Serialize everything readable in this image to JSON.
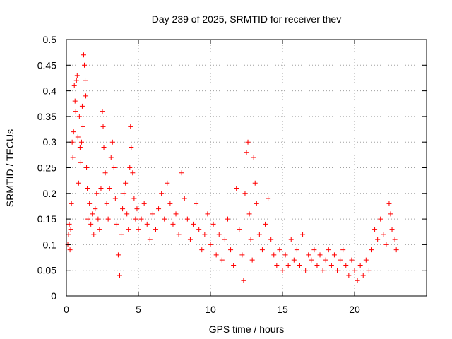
{
  "chart_data": {
    "type": "scatter",
    "title": "Day 239 of 2025, SRMTID for receiver thev",
    "xlabel": "GPS time / hours",
    "ylabel": "SRMTID / TECUs",
    "xlim": [
      0,
      25
    ],
    "ylim": [
      0,
      0.5
    ],
    "grid": true,
    "marker": "+",
    "x_ticks": [
      0,
      5,
      10,
      15,
      20
    ],
    "x_tick_labels": [
      "0",
      "5",
      "10",
      "15",
      "20"
    ],
    "y_ticks": [
      0,
      0.05,
      0.1,
      0.15,
      0.2,
      0.25,
      0.3,
      0.35,
      0.4,
      0.45,
      0.5
    ],
    "y_tick_labels": [
      "0",
      "0.05",
      "0.1",
      "0.15",
      "0.2",
      "0.25",
      "0.3",
      "0.35",
      "0.4",
      "0.45",
      "0.5"
    ],
    "colors": {
      "points": "#ff0000",
      "grid": "#a0a0a0",
      "axes": "#000000"
    },
    "series": [
      {
        "name": "SRMTID",
        "points": [
          [
            0.1,
            0.1
          ],
          [
            0.15,
            0.12
          ],
          [
            0.2,
            0.14
          ],
          [
            0.25,
            0.09
          ],
          [
            0.3,
            0.13
          ],
          [
            0.35,
            0.18
          ],
          [
            0.4,
            0.3
          ],
          [
            0.45,
            0.27
          ],
          [
            0.5,
            0.32
          ],
          [
            0.55,
            0.41
          ],
          [
            0.6,
            0.38
          ],
          [
            0.65,
            0.36
          ],
          [
            0.7,
            0.42
          ],
          [
            0.75,
            0.43
          ],
          [
            0.8,
            0.31
          ],
          [
            0.85,
            0.22
          ],
          [
            0.9,
            0.35
          ],
          [
            0.95,
            0.29
          ],
          [
            1.0,
            0.26
          ],
          [
            1.05,
            0.3
          ],
          [
            1.1,
            0.37
          ],
          [
            1.15,
            0.33
          ],
          [
            1.2,
            0.47
          ],
          [
            1.25,
            0.45
          ],
          [
            1.3,
            0.42
          ],
          [
            1.35,
            0.39
          ],
          [
            1.4,
            0.25
          ],
          [
            1.45,
            0.21
          ],
          [
            1.5,
            0.15
          ],
          [
            1.6,
            0.18
          ],
          [
            1.7,
            0.14
          ],
          [
            1.8,
            0.16
          ],
          [
            1.9,
            0.12
          ],
          [
            2.0,
            0.17
          ],
          [
            2.1,
            0.2
          ],
          [
            2.2,
            0.15
          ],
          [
            2.3,
            0.13
          ],
          [
            2.4,
            0.21
          ],
          [
            2.5,
            0.36
          ],
          [
            2.55,
            0.33
          ],
          [
            2.6,
            0.29
          ],
          [
            2.7,
            0.24
          ],
          [
            2.8,
            0.18
          ],
          [
            2.9,
            0.15
          ],
          [
            3.0,
            0.21
          ],
          [
            3.1,
            0.27
          ],
          [
            3.2,
            0.3
          ],
          [
            3.3,
            0.25
          ],
          [
            3.4,
            0.19
          ],
          [
            3.5,
            0.14
          ],
          [
            3.6,
            0.08
          ],
          [
            3.7,
            0.04
          ],
          [
            3.8,
            0.12
          ],
          [
            3.9,
            0.17
          ],
          [
            4.0,
            0.2
          ],
          [
            4.1,
            0.22
          ],
          [
            4.2,
            0.16
          ],
          [
            4.3,
            0.13
          ],
          [
            4.4,
            0.25
          ],
          [
            4.45,
            0.33
          ],
          [
            4.5,
            0.29
          ],
          [
            4.6,
            0.24
          ],
          [
            4.7,
            0.19
          ],
          [
            4.8,
            0.15
          ],
          [
            4.9,
            0.17
          ],
          [
            5.0,
            0.13
          ],
          [
            5.2,
            0.15
          ],
          [
            5.4,
            0.18
          ],
          [
            5.6,
            0.14
          ],
          [
            5.8,
            0.11
          ],
          [
            6.0,
            0.16
          ],
          [
            6.2,
            0.13
          ],
          [
            6.4,
            0.17
          ],
          [
            6.6,
            0.2
          ],
          [
            6.8,
            0.15
          ],
          [
            7.0,
            0.22
          ],
          [
            7.2,
            0.18
          ],
          [
            7.4,
            0.14
          ],
          [
            7.6,
            0.16
          ],
          [
            7.8,
            0.12
          ],
          [
            8.0,
            0.24
          ],
          [
            8.2,
            0.19
          ],
          [
            8.4,
            0.15
          ],
          [
            8.6,
            0.11
          ],
          [
            8.8,
            0.14
          ],
          [
            9.0,
            0.18
          ],
          [
            9.2,
            0.13
          ],
          [
            9.4,
            0.09
          ],
          [
            9.6,
            0.12
          ],
          [
            9.8,
            0.16
          ],
          [
            10.0,
            0.1
          ],
          [
            10.2,
            0.14
          ],
          [
            10.4,
            0.08
          ],
          [
            10.6,
            0.12
          ],
          [
            10.8,
            0.07
          ],
          [
            11.0,
            0.11
          ],
          [
            11.2,
            0.15
          ],
          [
            11.4,
            0.09
          ],
          [
            11.6,
            0.06
          ],
          [
            11.8,
            0.21
          ],
          [
            12.0,
            0.13
          ],
          [
            12.2,
            0.08
          ],
          [
            12.3,
            0.03
          ],
          [
            12.4,
            0.2
          ],
          [
            12.5,
            0.28
          ],
          [
            12.6,
            0.3
          ],
          [
            12.7,
            0.16
          ],
          [
            12.8,
            0.11
          ],
          [
            12.9,
            0.07
          ],
          [
            13.0,
            0.27
          ],
          [
            13.1,
            0.22
          ],
          [
            13.2,
            0.18
          ],
          [
            13.4,
            0.12
          ],
          [
            13.6,
            0.09
          ],
          [
            13.8,
            0.14
          ],
          [
            14.0,
            0.19
          ],
          [
            14.2,
            0.11
          ],
          [
            14.4,
            0.08
          ],
          [
            14.6,
            0.06
          ],
          [
            14.8,
            0.09
          ],
          [
            15.0,
            0.05
          ],
          [
            15.2,
            0.08
          ],
          [
            15.4,
            0.06
          ],
          [
            15.6,
            0.11
          ],
          [
            15.8,
            0.07
          ],
          [
            16.0,
            0.09
          ],
          [
            16.2,
            0.06
          ],
          [
            16.4,
            0.12
          ],
          [
            16.6,
            0.05
          ],
          [
            16.8,
            0.08
          ],
          [
            17.0,
            0.07
          ],
          [
            17.2,
            0.09
          ],
          [
            17.4,
            0.06
          ],
          [
            17.6,
            0.08
          ],
          [
            17.8,
            0.05
          ],
          [
            18.0,
            0.07
          ],
          [
            18.2,
            0.09
          ],
          [
            18.4,
            0.06
          ],
          [
            18.6,
            0.08
          ],
          [
            18.8,
            0.05
          ],
          [
            19.0,
            0.07
          ],
          [
            19.2,
            0.09
          ],
          [
            19.4,
            0.06
          ],
          [
            19.6,
            0.04
          ],
          [
            19.8,
            0.07
          ],
          [
            20.0,
            0.05
          ],
          [
            20.2,
            0.03
          ],
          [
            20.4,
            0.06
          ],
          [
            20.6,
            0.04
          ],
          [
            20.8,
            0.07
          ],
          [
            21.0,
            0.05
          ],
          [
            21.2,
            0.09
          ],
          [
            21.4,
            0.13
          ],
          [
            21.6,
            0.11
          ],
          [
            21.8,
            0.15
          ],
          [
            22.0,
            0.12
          ],
          [
            22.2,
            0.1
          ],
          [
            22.4,
            0.18
          ],
          [
            22.5,
            0.16
          ],
          [
            22.6,
            0.13
          ],
          [
            22.8,
            0.11
          ],
          [
            22.9,
            0.09
          ]
        ]
      }
    ]
  }
}
